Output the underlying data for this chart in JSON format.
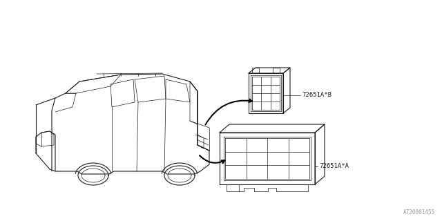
{
  "background_color": "#ffffff",
  "line_color": "#1a1a1a",
  "label_color": "#1a1a1a",
  "part_label_a": "72651A*A",
  "part_label_b": "72651A*B",
  "diagram_id": "A720001455",
  "fig_width": 6.4,
  "fig_height": 3.2,
  "dpi": 100
}
